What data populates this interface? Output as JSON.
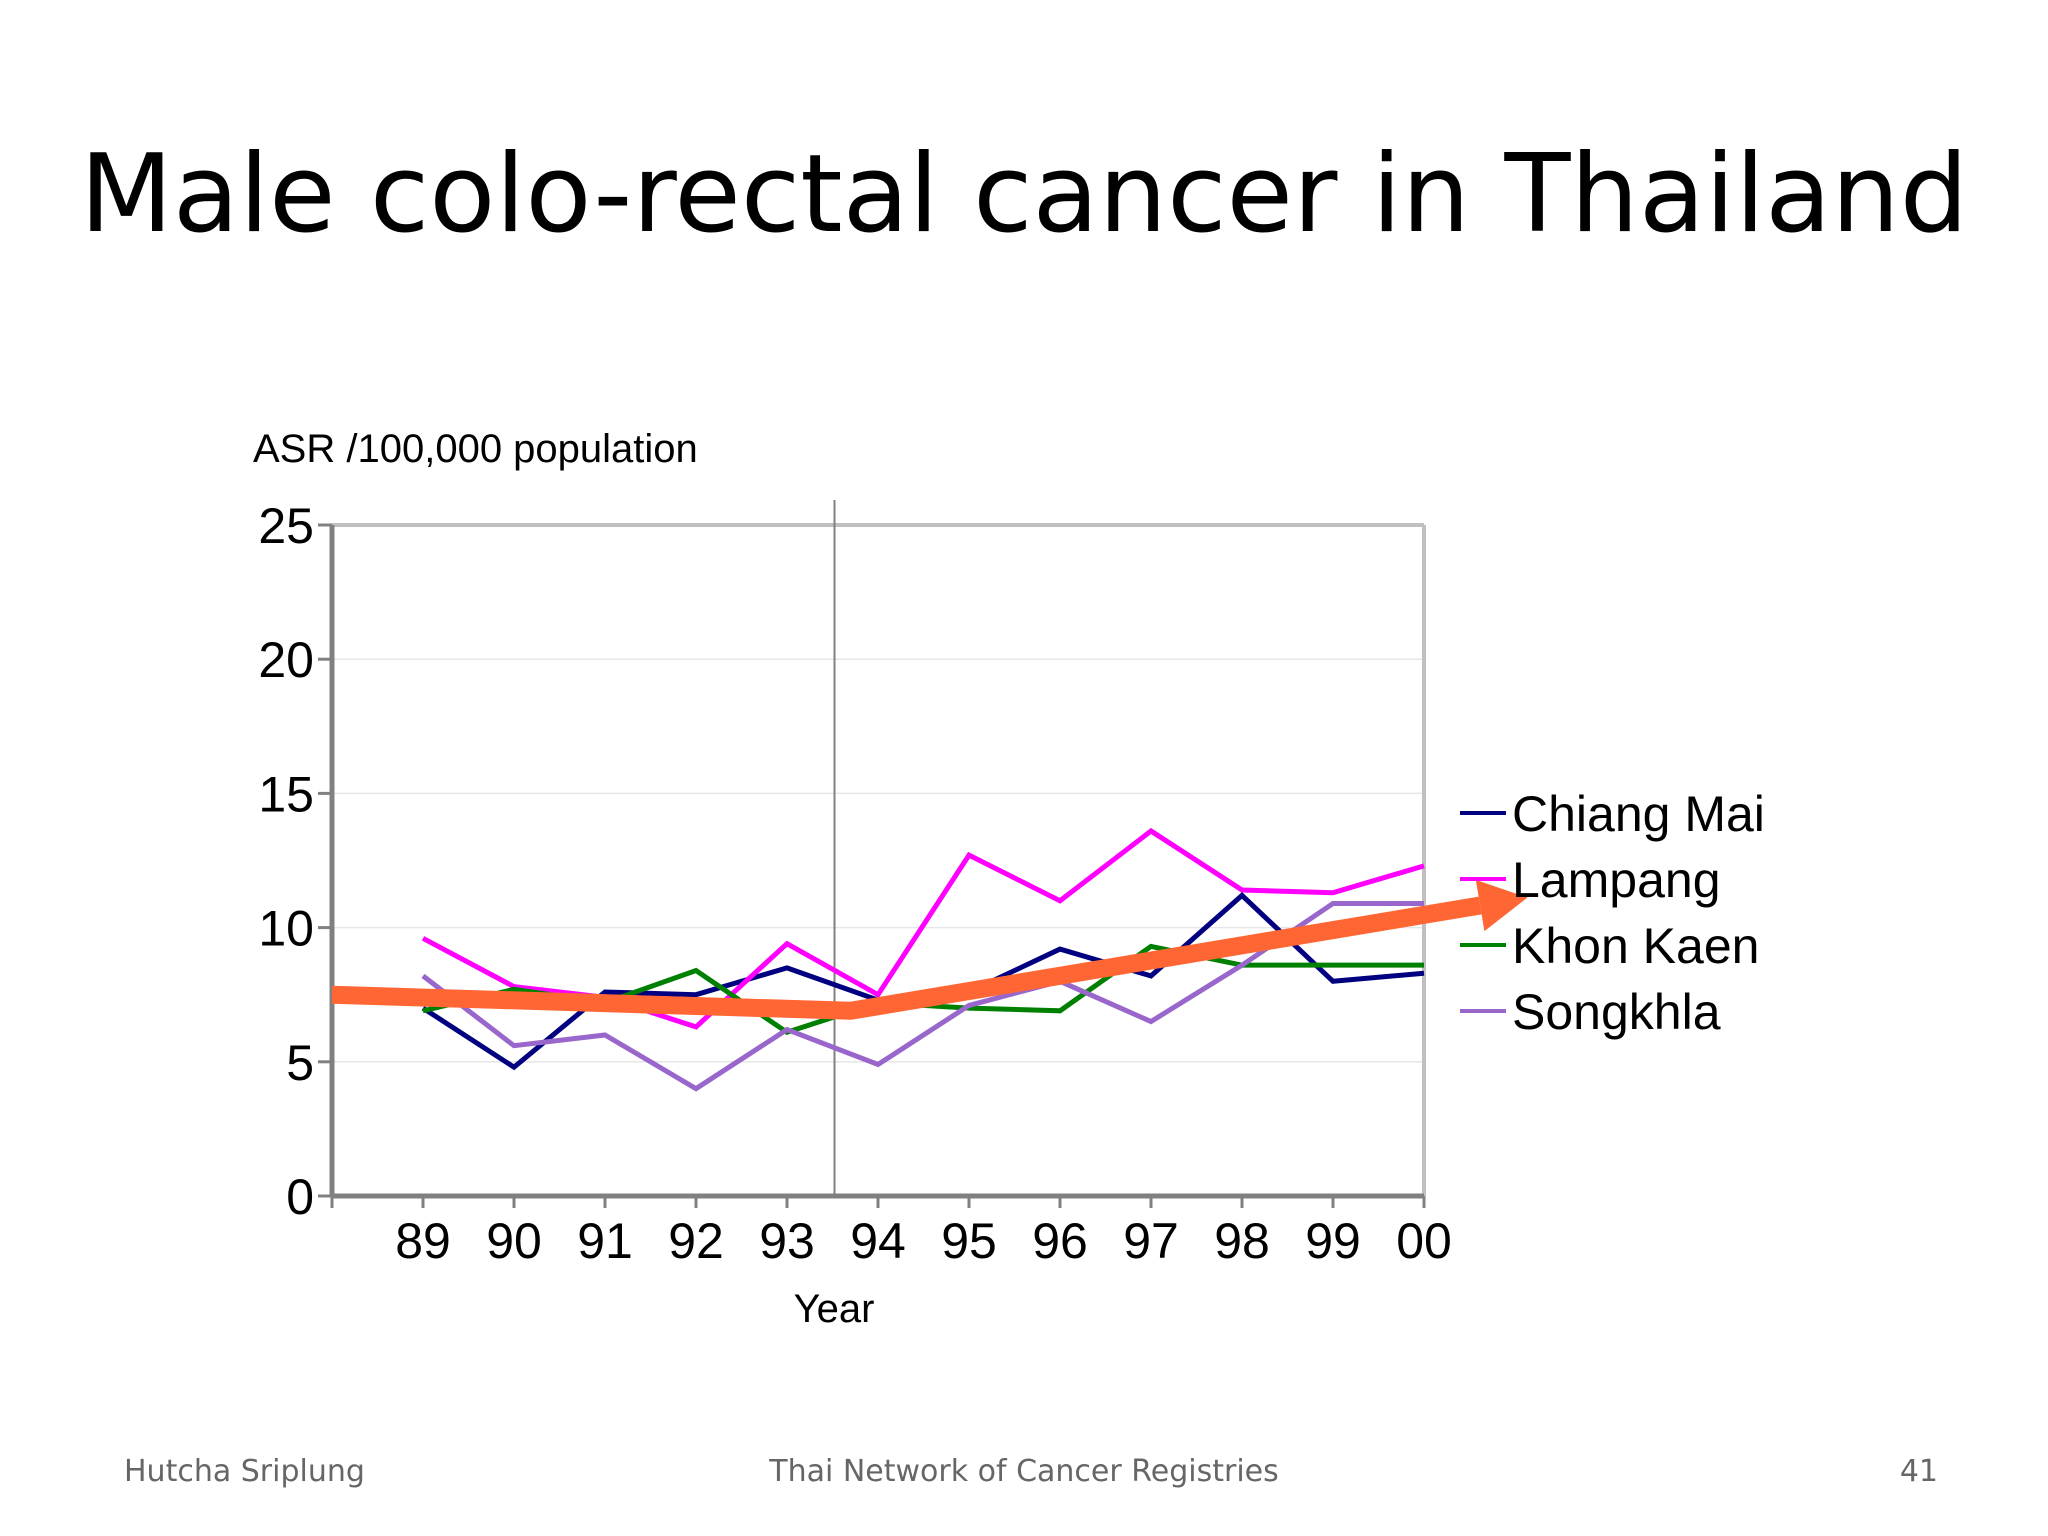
{
  "slide": {
    "title": "Male colo-rectal cancer in Thailand",
    "footer_left": "Hutcha Sriplung",
    "footer_center": "Thai Network of Cancer Registries",
    "footer_right": "41"
  },
  "chart_data": {
    "type": "line",
    "title": "",
    "ylabel": "ASR /100,000 population",
    "xlabel": "Year",
    "ylim": [
      0,
      25
    ],
    "yticks": [
      0,
      5,
      10,
      15,
      20,
      25
    ],
    "categories": [
      "89",
      "90",
      "91",
      "92",
      "93",
      "94",
      "95",
      "96",
      "97",
      "98",
      "99",
      "00"
    ],
    "grid": true,
    "legend_position": "right",
    "series": [
      {
        "name": "Chiang Mai",
        "color": "#000080",
        "values": [
          7.0,
          4.8,
          7.6,
          7.5,
          8.5,
          7.3,
          7.6,
          9.2,
          8.2,
          11.2,
          8.0,
          8.3
        ]
      },
      {
        "name": "Lampang",
        "color": "#ff00ff",
        "values": [
          9.6,
          7.8,
          7.4,
          6.3,
          9.4,
          7.5,
          12.7,
          11.0,
          13.6,
          11.4,
          11.3,
          12.3
        ]
      },
      {
        "name": "Khon Kaen",
        "color": "#008000",
        "values": [
          6.9,
          7.7,
          7.2,
          8.4,
          6.1,
          7.2,
          7.0,
          6.9,
          9.3,
          8.6,
          8.6,
          8.6
        ]
      },
      {
        "name": "Songkhla",
        "color": "#9966cc",
        "values": [
          8.2,
          5.6,
          6.0,
          4.0,
          6.2,
          4.9,
          7.1,
          8.0,
          6.5,
          8.6,
          10.9,
          10.9
        ]
      }
    ],
    "annotations": {
      "divider_between": [
        "93",
        "94"
      ],
      "trend_arrow": {
        "color": "#ff6633",
        "points": [
          {
            "x": "88",
            "y": 7.5
          },
          {
            "x": "93.7",
            "y": 6.9
          },
          {
            "x": "00.4",
            "y": 10.7
          }
        ]
      }
    }
  }
}
